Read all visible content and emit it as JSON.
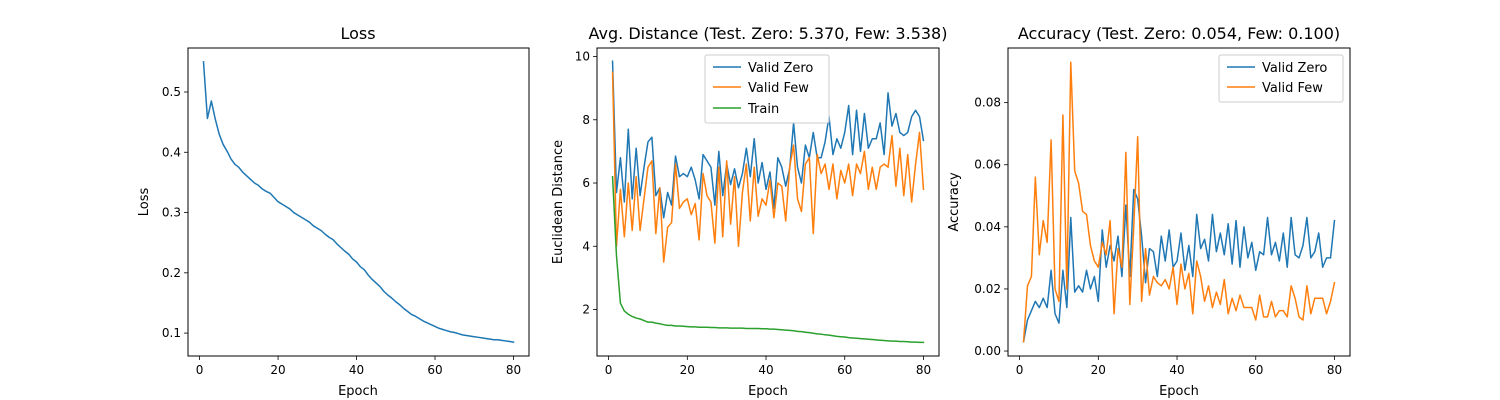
{
  "chart_data": [
    {
      "type": "line",
      "title": "Loss",
      "xlabel": "Epoch",
      "ylabel": "Loss",
      "xlim": [
        -2.95,
        83.95
      ],
      "ylim": [
        0.062,
        0.573
      ],
      "xticks": [
        0,
        20,
        40,
        60,
        80
      ],
      "yticks": [
        0.1,
        0.2,
        0.3,
        0.4,
        0.5
      ],
      "ytick_labels": [
        "0.1",
        "0.2",
        "0.3",
        "0.4",
        "0.5"
      ],
      "legend": null,
      "grid": false,
      "series": [
        {
          "color": "#1f77b4",
          "x": [
            1,
            2,
            3,
            4,
            5,
            6,
            7,
            8,
            9,
            10,
            11,
            12,
            13,
            14,
            15,
            16,
            17,
            18,
            19,
            20,
            21,
            22,
            23,
            24,
            25,
            26,
            27,
            28,
            29,
            30,
            31,
            32,
            33,
            34,
            35,
            36,
            37,
            38,
            39,
            40,
            41,
            42,
            43,
            44,
            45,
            46,
            47,
            48,
            49,
            50,
            51,
            52,
            53,
            54,
            55,
            56,
            57,
            58,
            59,
            60,
            61,
            62,
            63,
            64,
            65,
            66,
            67,
            68,
            69,
            70,
            71,
            72,
            73,
            74,
            75,
            76,
            77,
            78,
            79,
            80
          ],
          "y": [
            0.55,
            0.456,
            0.485,
            0.455,
            0.43,
            0.413,
            0.402,
            0.389,
            0.38,
            0.375,
            0.367,
            0.361,
            0.355,
            0.349,
            0.345,
            0.339,
            0.335,
            0.332,
            0.325,
            0.318,
            0.314,
            0.31,
            0.306,
            0.3,
            0.296,
            0.292,
            0.288,
            0.284,
            0.278,
            0.274,
            0.27,
            0.264,
            0.259,
            0.255,
            0.248,
            0.242,
            0.236,
            0.231,
            0.223,
            0.218,
            0.21,
            0.205,
            0.196,
            0.189,
            0.183,
            0.177,
            0.169,
            0.163,
            0.158,
            0.152,
            0.147,
            0.141,
            0.136,
            0.131,
            0.128,
            0.124,
            0.12,
            0.117,
            0.114,
            0.111,
            0.108,
            0.106,
            0.104,
            0.102,
            0.101,
            0.099,
            0.097,
            0.096,
            0.095,
            0.094,
            0.093,
            0.092,
            0.091,
            0.09,
            0.089,
            0.089,
            0.088,
            0.087,
            0.086,
            0.085
          ]
        }
      ]
    },
    {
      "type": "line",
      "title": "Avg. Distance (Test. Zero: 5.370, Few: 3.538)",
      "xlabel": "Epoch",
      "ylabel": "Euclidean Distance",
      "xlim": [
        -2.95,
        83.95
      ],
      "ylim": [
        0.53,
        10.27
      ],
      "xticks": [
        0,
        20,
        40,
        60,
        80
      ],
      "yticks": [
        2,
        4,
        6,
        8,
        10
      ],
      "ytick_labels": [
        "2",
        "4",
        "6",
        "8",
        "10"
      ],
      "legend": "upper center",
      "grid": false,
      "series": [
        {
          "name": "Valid Zero",
          "color": "#1f77b4",
          "x": [
            1,
            2,
            3,
            4,
            5,
            6,
            7,
            8,
            9,
            10,
            11,
            12,
            13,
            14,
            15,
            16,
            17,
            18,
            19,
            20,
            21,
            22,
            23,
            24,
            25,
            26,
            27,
            28,
            29,
            30,
            31,
            32,
            33,
            34,
            35,
            36,
            37,
            38,
            39,
            40,
            41,
            42,
            43,
            44,
            45,
            46,
            47,
            48,
            49,
            50,
            51,
            52,
            53,
            54,
            55,
            56,
            57,
            58,
            59,
            60,
            61,
            62,
            63,
            64,
            65,
            66,
            67,
            68,
            69,
            70,
            71,
            72,
            73,
            74,
            75,
            76,
            77,
            78,
            79,
            80
          ],
          "y": [
            9.85,
            5.7,
            6.8,
            5.4,
            7.7,
            5.5,
            7.1,
            5.6,
            6.5,
            7.3,
            7.45,
            5.6,
            5.85,
            4.9,
            5.7,
            5.3,
            6.85,
            6.2,
            6.3,
            6.2,
            6.5,
            6.1,
            5.5,
            6.9,
            6.7,
            6.5,
            5.3,
            7.0,
            5.6,
            6.6,
            5.95,
            6.45,
            5.85,
            6.3,
            7.1,
            6.2,
            7.4,
            6.0,
            6.65,
            5.8,
            6.35,
            5.2,
            6.8,
            6.5,
            5.9,
            6.45,
            7.9,
            6.5,
            6.0,
            7.2,
            6.8,
            7.6,
            6.8,
            6.8,
            7.3,
            8.1,
            6.9,
            7.4,
            7.1,
            7.6,
            8.45,
            6.9,
            8.3,
            7.0,
            8.2,
            7.1,
            7.4,
            7.4,
            7.9,
            6.9,
            8.85,
            7.8,
            8.2,
            7.6,
            7.5,
            7.6,
            8.1,
            8.3,
            8.1,
            7.35
          ]
        },
        {
          "name": "Valid Few",
          "color": "#ff7f0e",
          "x": [
            1,
            2,
            3,
            4,
            5,
            6,
            7,
            8,
            9,
            10,
            11,
            12,
            13,
            14,
            15,
            16,
            17,
            18,
            19,
            20,
            21,
            22,
            23,
            24,
            25,
            26,
            27,
            28,
            29,
            30,
            31,
            32,
            33,
            34,
            35,
            36,
            37,
            38,
            39,
            40,
            41,
            42,
            43,
            44,
            45,
            46,
            47,
            48,
            49,
            50,
            51,
            52,
            53,
            54,
            55,
            56,
            57,
            58,
            59,
            60,
            61,
            62,
            63,
            64,
            65,
            66,
            67,
            68,
            69,
            70,
            71,
            72,
            73,
            74,
            75,
            76,
            77,
            78,
            79,
            80
          ],
          "y": [
            9.5,
            4.0,
            5.8,
            4.3,
            6.0,
            4.5,
            6.2,
            4.5,
            5.5,
            6.5,
            6.7,
            4.4,
            5.85,
            3.5,
            4.6,
            4.75,
            6.6,
            5.2,
            5.4,
            5.5,
            5.0,
            5.35,
            4.2,
            6.3,
            5.6,
            5.4,
            4.1,
            6.5,
            4.3,
            6.7,
            4.7,
            6.2,
            4.0,
            5.7,
            6.6,
            4.8,
            6.5,
            4.95,
            5.5,
            5.3,
            6.1,
            4.9,
            6.0,
            5.9,
            4.8,
            6.5,
            7.2,
            5.5,
            5.1,
            6.6,
            6.8,
            4.4,
            6.9,
            6.3,
            6.6,
            5.8,
            6.6,
            5.5,
            6.4,
            6.0,
            6.6,
            5.6,
            6.6,
            6.3,
            7.0,
            5.8,
            6.5,
            5.8,
            6.5,
            6.6,
            6.5,
            7.5,
            5.9,
            7.1,
            5.6,
            6.9,
            5.4,
            6.6,
            7.6,
            5.8
          ]
        },
        {
          "name": "Train",
          "color": "#2ca02c",
          "x": [
            1,
            2,
            3,
            4,
            5,
            6,
            7,
            8,
            9,
            10,
            11,
            12,
            13,
            14,
            15,
            16,
            17,
            18,
            19,
            20,
            21,
            22,
            23,
            24,
            25,
            26,
            27,
            28,
            29,
            30,
            31,
            32,
            33,
            34,
            35,
            36,
            37,
            38,
            39,
            40,
            41,
            42,
            43,
            44,
            45,
            46,
            47,
            48,
            49,
            50,
            51,
            52,
            53,
            54,
            55,
            56,
            57,
            58,
            59,
            60,
            61,
            62,
            63,
            64,
            65,
            66,
            67,
            68,
            69,
            70,
            71,
            72,
            73,
            74,
            75,
            76,
            77,
            78,
            79,
            80
          ],
          "y": [
            6.2,
            3.7,
            2.2,
            1.95,
            1.85,
            1.78,
            1.73,
            1.7,
            1.65,
            1.6,
            1.6,
            1.57,
            1.55,
            1.52,
            1.5,
            1.5,
            1.48,
            1.48,
            1.47,
            1.46,
            1.45,
            1.45,
            1.44,
            1.44,
            1.44,
            1.43,
            1.43,
            1.42,
            1.42,
            1.42,
            1.41,
            1.41,
            1.41,
            1.41,
            1.4,
            1.4,
            1.4,
            1.4,
            1.39,
            1.39,
            1.38,
            1.38,
            1.37,
            1.36,
            1.35,
            1.34,
            1.33,
            1.31,
            1.3,
            1.28,
            1.27,
            1.25,
            1.23,
            1.22,
            1.2,
            1.19,
            1.17,
            1.15,
            1.14,
            1.13,
            1.11,
            1.1,
            1.09,
            1.08,
            1.07,
            1.06,
            1.05,
            1.04,
            1.03,
            1.02,
            1.01,
            1.0,
            1.0,
            0.99,
            0.99,
            0.98,
            0.97,
            0.97,
            0.96,
            0.96
          ]
        }
      ]
    },
    {
      "type": "line",
      "title": "Accuracy (Test. Zero: 0.054, Few: 0.100)",
      "xlabel": "Epoch",
      "ylabel": "Accuracy",
      "xlim": [
        -2.95,
        83.95
      ],
      "ylim": [
        -0.0016,
        0.0976
      ],
      "xticks": [
        0,
        20,
        40,
        60,
        80
      ],
      "yticks": [
        0.0,
        0.02,
        0.04,
        0.06,
        0.08
      ],
      "ytick_labels": [
        "0.00",
        "0.02",
        "0.04",
        "0.06",
        "0.08"
      ],
      "legend": "upper right",
      "grid": false,
      "series": [
        {
          "name": "Valid Zero",
          "color": "#1f77b4",
          "x": [
            1,
            2,
            3,
            4,
            5,
            6,
            7,
            8,
            9,
            10,
            11,
            12,
            13,
            14,
            15,
            16,
            17,
            18,
            19,
            20,
            21,
            22,
            23,
            24,
            25,
            26,
            27,
            28,
            29,
            30,
            31,
            32,
            33,
            34,
            35,
            36,
            37,
            38,
            39,
            40,
            41,
            42,
            43,
            44,
            45,
            46,
            47,
            48,
            49,
            50,
            51,
            52,
            53,
            54,
            55,
            56,
            57,
            58,
            59,
            60,
            61,
            62,
            63,
            64,
            65,
            66,
            67,
            68,
            69,
            70,
            71,
            72,
            73,
            74,
            75,
            76,
            77,
            78,
            79,
            80
          ],
          "y": [
            0.003,
            0.01,
            0.013,
            0.016,
            0.014,
            0.017,
            0.014,
            0.026,
            0.012,
            0.009,
            0.026,
            0.014,
            0.043,
            0.019,
            0.021,
            0.019,
            0.026,
            0.02,
            0.024,
            0.016,
            0.039,
            0.027,
            0.034,
            0.029,
            0.037,
            0.024,
            0.047,
            0.024,
            0.052,
            0.049,
            0.037,
            0.022,
            0.033,
            0.032,
            0.024,
            0.037,
            0.029,
            0.039,
            0.027,
            0.029,
            0.038,
            0.026,
            0.034,
            0.024,
            0.044,
            0.033,
            0.036,
            0.029,
            0.044,
            0.032,
            0.038,
            0.031,
            0.041,
            0.028,
            0.042,
            0.027,
            0.04,
            0.03,
            0.035,
            0.026,
            0.032,
            0.031,
            0.043,
            0.031,
            0.035,
            0.029,
            0.038,
            0.027,
            0.043,
            0.031,
            0.03,
            0.034,
            0.043,
            0.03,
            0.032,
            0.038,
            0.027,
            0.03,
            0.03,
            0.042
          ]
        },
        {
          "name": "Valid Few",
          "color": "#ff7f0e",
          "x": [
            1,
            2,
            3,
            4,
            5,
            6,
            7,
            8,
            9,
            10,
            11,
            12,
            13,
            14,
            15,
            16,
            17,
            18,
            19,
            20,
            21,
            22,
            23,
            24,
            25,
            26,
            27,
            28,
            29,
            30,
            31,
            32,
            33,
            34,
            35,
            36,
            37,
            38,
            39,
            40,
            41,
            42,
            43,
            44,
            45,
            46,
            47,
            48,
            49,
            50,
            51,
            52,
            53,
            54,
            55,
            56,
            57,
            58,
            59,
            60,
            61,
            62,
            63,
            64,
            65,
            66,
            67,
            68,
            69,
            70,
            71,
            72,
            73,
            74,
            75,
            76,
            77,
            78,
            79,
            80
          ],
          "y": [
            0.003,
            0.021,
            0.024,
            0.056,
            0.031,
            0.042,
            0.035,
            0.068,
            0.02,
            0.016,
            0.076,
            0.02,
            0.093,
            0.058,
            0.054,
            0.045,
            0.044,
            0.034,
            0.029,
            0.027,
            0.035,
            0.031,
            0.042,
            0.012,
            0.033,
            0.027,
            0.064,
            0.015,
            0.04,
            0.069,
            0.016,
            0.033,
            0.018,
            0.024,
            0.022,
            0.021,
            0.023,
            0.02,
            0.027,
            0.015,
            0.028,
            0.02,
            0.025,
            0.012,
            0.029,
            0.024,
            0.016,
            0.021,
            0.014,
            0.019,
            0.015,
            0.023,
            0.012,
            0.017,
            0.013,
            0.018,
            0.014,
            0.014,
            0.014,
            0.01,
            0.018,
            0.011,
            0.011,
            0.016,
            0.011,
            0.013,
            0.013,
            0.011,
            0.021,
            0.017,
            0.011,
            0.01,
            0.021,
            0.012,
            0.017,
            0.017,
            0.017,
            0.012,
            0.016,
            0.022
          ]
        }
      ]
    }
  ]
}
